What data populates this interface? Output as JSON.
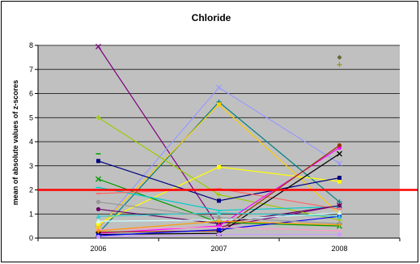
{
  "chart_data": {
    "type": "line",
    "title": "Chloride",
    "xlabel": "",
    "ylabel": "mean of absolute values of z-scores",
    "categories": [
      "2006",
      "2007",
      "2008"
    ],
    "ylim": [
      0,
      8
    ],
    "yticks": [
      "0",
      "1",
      "2",
      "3",
      "4",
      "5",
      "6",
      "7",
      "8"
    ],
    "grid": true,
    "plot_background": "#c0c0c0",
    "reference_line": {
      "y": 2,
      "color": "#ff0000"
    },
    "series": [
      {
        "color": "#800080",
        "marker": "x",
        "values": [
          7.95,
          0.45,
          1.35
        ]
      },
      {
        "color": "#9999ff",
        "marker": "x",
        "values": [
          0.4,
          6.25,
          3.1
        ]
      },
      {
        "color": "#008080",
        "marker": "plus",
        "values": [
          0.2,
          5.65,
          1.5
        ]
      },
      {
        "color": "#ffcc00",
        "marker": "square",
        "values": [
          0.45,
          5.55,
          1.0
        ]
      },
      {
        "color": "#99cc00",
        "marker": "plus",
        "values": [
          5.0,
          1.8,
          0.75
        ]
      },
      {
        "color": "#ffff00",
        "marker": "square",
        "values": [
          0.6,
          2.95,
          2.35
        ]
      },
      {
        "color": "#000080",
        "marker": "square",
        "values": [
          3.2,
          1.55,
          2.5
        ]
      },
      {
        "color": "#009900",
        "marker": "x",
        "values": [
          2.45,
          0.65,
          0.5
        ]
      },
      {
        "color": "#00cccc",
        "marker": "dash",
        "values": [
          2.1,
          1.15,
          1.3
        ]
      },
      {
        "color": "#ff6666",
        "marker": "dash",
        "values": [
          1.85,
          2.05,
          1.2
        ]
      },
      {
        "color": "#660066",
        "marker": "circle",
        "values": [
          1.2,
          0.6,
          1.35
        ]
      },
      {
        "color": "#ff00ff",
        "marker": "circle",
        "values": [
          0.2,
          0.5,
          3.75
        ]
      },
      {
        "color": "#993300",
        "marker": "circle",
        "values": [
          0.25,
          0.3,
          3.85
        ]
      },
      {
        "color": "#000000",
        "marker": "x",
        "values": [
          0.15,
          0.2,
          3.5
        ]
      },
      {
        "color": "#0000ff",
        "marker": "square",
        "values": [
          0.1,
          0.35,
          0.9
        ]
      },
      {
        "color": "#33cccc",
        "marker": "triangle",
        "values": [
          0.9,
          1.05,
          0.9
        ]
      },
      {
        "color": "#ccffff",
        "marker": "triangle",
        "values": [
          0.7,
          0.75,
          1.05
        ]
      },
      {
        "color": "#ff99cc",
        "marker": "dash",
        "values": [
          0.35,
          0.45,
          0.3
        ]
      },
      {
        "color": "#999999",
        "marker": "circle",
        "values": [
          1.5,
          0.85,
          0.6
        ]
      },
      {
        "color": "#cc99ff",
        "marker": "circle",
        "values": [
          0.05,
          0.15,
          0.15
        ]
      },
      {
        "color": "#ff9900",
        "marker": "plus",
        "values": [
          0.3,
          0.7,
          0.55
        ]
      },
      {
        "color": "#666633",
        "marker": "diamond",
        "values": [
          null,
          null,
          7.5
        ]
      },
      {
        "color": "#999933",
        "marker": "plus",
        "values": [
          null,
          null,
          7.2
        ]
      },
      {
        "color": "#00aa00",
        "marker": "dash",
        "values": [
          3.5,
          null,
          null
        ]
      }
    ]
  }
}
